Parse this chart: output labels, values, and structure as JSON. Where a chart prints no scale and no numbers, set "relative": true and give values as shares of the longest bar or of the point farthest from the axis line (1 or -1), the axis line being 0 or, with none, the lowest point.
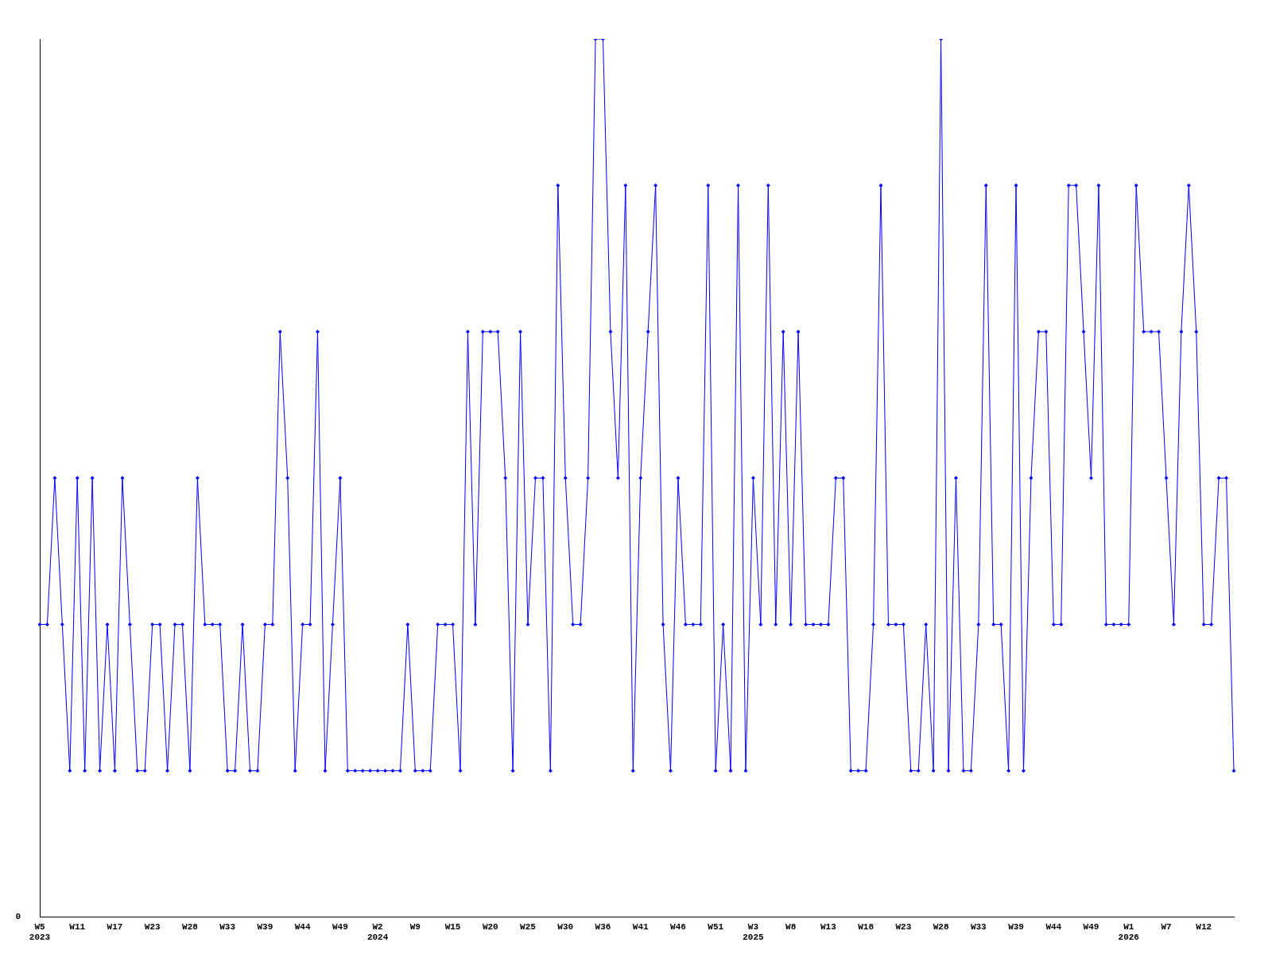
{
  "chart_data": {
    "type": "line",
    "relative": true,
    "grid": false,
    "legend": false,
    "marker": "diamond",
    "line_style": "solid",
    "categories": [
      "W5\n2023",
      null,
      null,
      null,
      null,
      "W11",
      null,
      null,
      null,
      null,
      "W17",
      null,
      null,
      null,
      null,
      "W23",
      null,
      null,
      null,
      null,
      "W28",
      null,
      null,
      null,
      null,
      "W33",
      null,
      null,
      null,
      null,
      "W39",
      null,
      null,
      null,
      null,
      "W44",
      null,
      null,
      null,
      null,
      "W49",
      null,
      null,
      null,
      null,
      "W2\n2024",
      null,
      null,
      null,
      null,
      "W9",
      null,
      null,
      null,
      null,
      "W15",
      null,
      null,
      null,
      null,
      "W20",
      null,
      null,
      null,
      null,
      "W25",
      null,
      null,
      null,
      null,
      "W30",
      null,
      null,
      null,
      null,
      "W36",
      null,
      null,
      null,
      null,
      "W41",
      null,
      null,
      null,
      null,
      "W46",
      null,
      null,
      null,
      null,
      "W51",
      null,
      null,
      null,
      null,
      "W3\n2025",
      null,
      null,
      null,
      null,
      "W8",
      null,
      null,
      null,
      null,
      "W13",
      null,
      null,
      null,
      null,
      "W18",
      null,
      null,
      null,
      null,
      "W23",
      null,
      null,
      null,
      null,
      "W28",
      null,
      null,
      null,
      null,
      "W33",
      null,
      null,
      null,
      null,
      "W39",
      null,
      null,
      null,
      null,
      "W44",
      null,
      null,
      null,
      null,
      "W49",
      null,
      null,
      null,
      null,
      "W1\n2026",
      null,
      null,
      null,
      null,
      "W7",
      null,
      null,
      null,
      null,
      "W12",
      null,
      null,
      null,
      null
    ],
    "series": [
      {
        "color": "#0000ff",
        "values": [
          0.3333,
          0.3333,
          0.5,
          0.3333,
          0.1667,
          0.5,
          0.1667,
          0.5,
          0.1667,
          0.3333,
          0.1667,
          0.5,
          0.3333,
          0.1667,
          0.1667,
          0.3333,
          0.3333,
          0.1667,
          0.3333,
          0.3333,
          0.1667,
          0.5,
          0.3333,
          0.3333,
          0.3333,
          0.1667,
          0.1667,
          0.3333,
          0.1667,
          0.1667,
          0.3333,
          0.3333,
          0.6667,
          0.5,
          0.1667,
          0.3333,
          0.3333,
          0.6667,
          0.1667,
          0.3333,
          0.5,
          0.1667,
          0.1667,
          0.1667,
          0.1667,
          0.1667,
          0.1667,
          0.1667,
          0.1667,
          0.3333,
          0.1667,
          0.1667,
          0.1667,
          0.3333,
          0.3333,
          0.3333,
          0.1667,
          0.6667,
          0.3333,
          0.6667,
          0.6667,
          0.6667,
          0.5,
          0.1667,
          0.6667,
          0.3333,
          0.5,
          0.5,
          0.1667,
          0.8333,
          0.5,
          0.3333,
          0.3333,
          0.5,
          1,
          1,
          0.6667,
          0.5,
          0.8333,
          0.1667,
          0.5,
          0.6667,
          0.8333,
          0.3333,
          0.1667,
          0.5,
          0.3333,
          0.3333,
          0.3333,
          0.8333,
          0.1667,
          0.3333,
          0.1667,
          0.8333,
          0.1667,
          0.5,
          0.3333,
          0.8333,
          0.3333,
          0.6667,
          0.3333,
          0.6667,
          0.3333,
          0.3333,
          0.3333,
          0.3333,
          0.5,
          0.5,
          0.1667,
          0.1667,
          0.1667,
          0.3333,
          0.8333,
          0.3333,
          0.3333,
          0.3333,
          0.1667,
          0.1667,
          0.3333,
          0.1667,
          1,
          0.1667,
          0.5,
          0.1667,
          0.1667,
          0.3333,
          0.8333,
          0.3333,
          0.3333,
          0.1667,
          0.8333,
          0.1667,
          0.5,
          0.6667,
          0.6667,
          0.3333,
          0.3333,
          0.8333,
          0.8333,
          0.6667,
          0.5,
          0.8333,
          0.3333,
          0.3333,
          0.3333,
          0.3333,
          0.8333,
          0.6667,
          0.6667,
          0.6667,
          0.5,
          0.3333,
          0.6667,
          0.8333,
          0.6667,
          0.3333,
          0.3333,
          0.5,
          0.5,
          0.1667
        ]
      }
    ],
    "annotations": [
      "0"
    ]
  }
}
